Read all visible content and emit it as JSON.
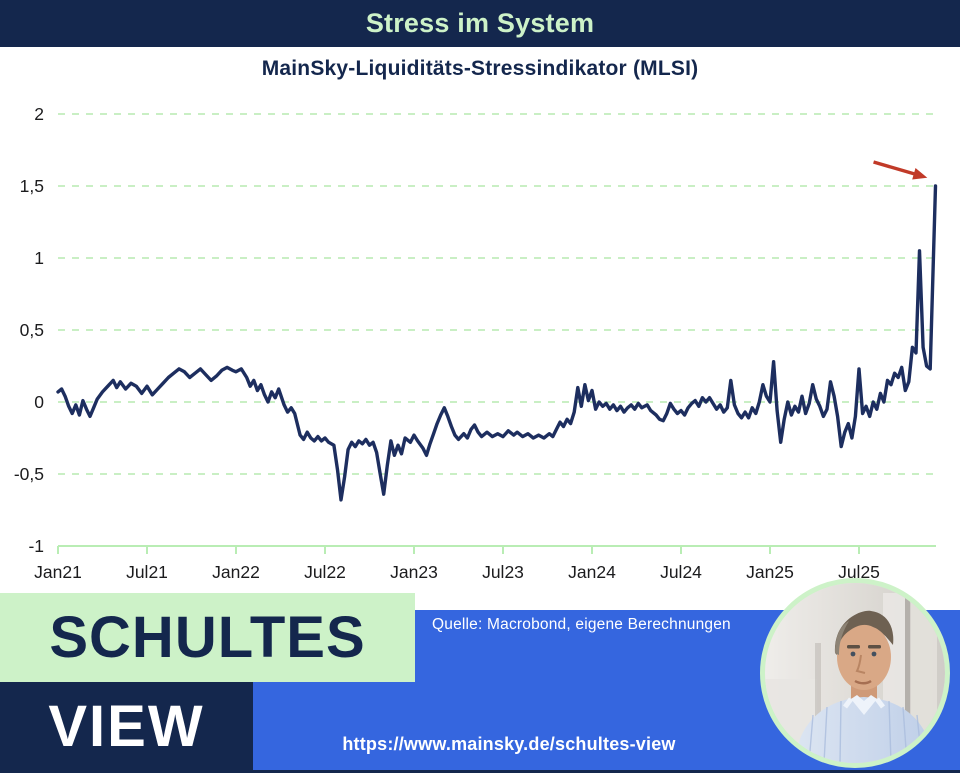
{
  "header": {
    "title": "Stress im System"
  },
  "chart": {
    "subtitle": "MainSky-Liquiditäts-Stressindikator (MLSI)"
  },
  "colors": {
    "navy": "#14274d",
    "line_navy": "#1d2e5f",
    "light_green": "#cdf2c8",
    "grid_green": "#c9efc4",
    "axis_green": "#b9edb4",
    "brand_blue": "#3566df",
    "arrow_red": "#c13a28",
    "tick_text": "#1c1c1e"
  },
  "branding": {
    "block_top_label": "SCHULTES",
    "block_bottom_label": "VIEW",
    "source_label": "Quelle: Macrobond, eigene Berechnungen",
    "url_label": "https://www.mainsky.de/schultes-view",
    "portrait": "photo of a man in light blue shirt, circular crop with light green ring"
  },
  "chart_data": {
    "type": "line",
    "title": "Stress im System",
    "subtitle": "MainSky-Liquiditäts-Stressindikator (MLSI)",
    "grid": "horizontal dashed light-green lines",
    "legend": "none",
    "x_axis": {
      "tick_labels": [
        "Jan21",
        "Jul21",
        "Jan22",
        "Jul22",
        "Jan23",
        "Jul23",
        "Jan24",
        "Jul24",
        "Jan25",
        "Jul25"
      ],
      "tick_years": [
        2021.0,
        2021.5,
        2022.0,
        2022.5,
        2023.0,
        2023.5,
        2024.0,
        2024.5,
        2025.0,
        2025.5
      ],
      "range_years": [
        2021.0,
        2025.93
      ]
    },
    "y_axis": {
      "tick_labels": [
        "2",
        "1,5",
        "1",
        "0,5",
        "0",
        "-0,5",
        "-1"
      ],
      "tick_values": [
        2,
        1.5,
        1,
        0.5,
        0,
        -0.5,
        -1
      ],
      "range": [
        -1,
        2
      ]
    },
    "annotation": {
      "type": "arrow",
      "color": "#c13a28",
      "points_to": "final spike of the indicator at approx. 1,5"
    },
    "series": [
      {
        "name": "MainSky-Liquiditäts-Stressindikator (MLSI)",
        "color": "#1d2e5f",
        "points": [
          [
            2021.0,
            0.07
          ],
          [
            2021.02,
            0.09
          ],
          [
            2021.04,
            0.04
          ],
          [
            2021.06,
            -0.03
          ],
          [
            2021.08,
            -0.08
          ],
          [
            2021.1,
            -0.02
          ],
          [
            2021.12,
            -0.09
          ],
          [
            2021.14,
            0.01
          ],
          [
            2021.16,
            -0.05
          ],
          [
            2021.18,
            -0.1
          ],
          [
            2021.2,
            -0.04
          ],
          [
            2021.22,
            0.02
          ],
          [
            2021.25,
            0.07
          ],
          [
            2021.28,
            0.11
          ],
          [
            2021.31,
            0.15
          ],
          [
            2021.33,
            0.1
          ],
          [
            2021.35,
            0.14
          ],
          [
            2021.38,
            0.09
          ],
          [
            2021.41,
            0.13
          ],
          [
            2021.44,
            0.11
          ],
          [
            2021.47,
            0.06
          ],
          [
            2021.5,
            0.11
          ],
          [
            2021.53,
            0.05
          ],
          [
            2021.56,
            0.09
          ],
          [
            2021.59,
            0.13
          ],
          [
            2021.62,
            0.17
          ],
          [
            2021.65,
            0.2
          ],
          [
            2021.68,
            0.23
          ],
          [
            2021.71,
            0.21
          ],
          [
            2021.74,
            0.17
          ],
          [
            2021.77,
            0.2
          ],
          [
            2021.8,
            0.23
          ],
          [
            2021.83,
            0.19
          ],
          [
            2021.86,
            0.15
          ],
          [
            2021.89,
            0.18
          ],
          [
            2021.92,
            0.22
          ],
          [
            2021.95,
            0.24
          ],
          [
            2021.98,
            0.22
          ],
          [
            2022.0,
            0.21
          ],
          [
            2022.03,
            0.23
          ],
          [
            2022.06,
            0.17
          ],
          [
            2022.08,
            0.11
          ],
          [
            2022.1,
            0.15
          ],
          [
            2022.12,
            0.08
          ],
          [
            2022.14,
            0.12
          ],
          [
            2022.16,
            0.05
          ],
          [
            2022.18,
            0.0
          ],
          [
            2022.2,
            0.07
          ],
          [
            2022.22,
            0.03
          ],
          [
            2022.24,
            0.09
          ],
          [
            2022.27,
            -0.02
          ],
          [
            2022.29,
            -0.07
          ],
          [
            2022.31,
            -0.04
          ],
          [
            2022.33,
            -0.08
          ],
          [
            2022.36,
            -0.23
          ],
          [
            2022.38,
            -0.26
          ],
          [
            2022.4,
            -0.21
          ],
          [
            2022.42,
            -0.25
          ],
          [
            2022.44,
            -0.27
          ],
          [
            2022.46,
            -0.24
          ],
          [
            2022.48,
            -0.27
          ],
          [
            2022.5,
            -0.25
          ],
          [
            2022.52,
            -0.28
          ],
          [
            2022.55,
            -0.3
          ],
          [
            2022.57,
            -0.47
          ],
          [
            2022.59,
            -0.68
          ],
          [
            2022.61,
            -0.52
          ],
          [
            2022.63,
            -0.33
          ],
          [
            2022.65,
            -0.28
          ],
          [
            2022.67,
            -0.31
          ],
          [
            2022.69,
            -0.27
          ],
          [
            2022.71,
            -0.29
          ],
          [
            2022.73,
            -0.26
          ],
          [
            2022.75,
            -0.3
          ],
          [
            2022.77,
            -0.28
          ],
          [
            2022.79,
            -0.35
          ],
          [
            2022.81,
            -0.5
          ],
          [
            2022.83,
            -0.64
          ],
          [
            2022.85,
            -0.44
          ],
          [
            2022.87,
            -0.27
          ],
          [
            2022.89,
            -0.37
          ],
          [
            2022.91,
            -0.3
          ],
          [
            2022.93,
            -0.36
          ],
          [
            2022.95,
            -0.25
          ],
          [
            2022.98,
            -0.28
          ],
          [
            2023.0,
            -0.23
          ],
          [
            2023.02,
            -0.27
          ],
          [
            2023.05,
            -0.32
          ],
          [
            2023.07,
            -0.37
          ],
          [
            2023.09,
            -0.29
          ],
          [
            2023.11,
            -0.22
          ],
          [
            2023.13,
            -0.15
          ],
          [
            2023.15,
            -0.09
          ],
          [
            2023.17,
            -0.04
          ],
          [
            2023.19,
            -0.1
          ],
          [
            2023.21,
            -0.17
          ],
          [
            2023.23,
            -0.23
          ],
          [
            2023.25,
            -0.26
          ],
          [
            2023.28,
            -0.22
          ],
          [
            2023.3,
            -0.25
          ],
          [
            2023.32,
            -0.19
          ],
          [
            2023.34,
            -0.16
          ],
          [
            2023.36,
            -0.21
          ],
          [
            2023.38,
            -0.24
          ],
          [
            2023.41,
            -0.21
          ],
          [
            2023.44,
            -0.24
          ],
          [
            2023.47,
            -0.22
          ],
          [
            2023.5,
            -0.24
          ],
          [
            2023.53,
            -0.2
          ],
          [
            2023.56,
            -0.23
          ],
          [
            2023.58,
            -0.21
          ],
          [
            2023.61,
            -0.24
          ],
          [
            2023.64,
            -0.22
          ],
          [
            2023.67,
            -0.25
          ],
          [
            2023.7,
            -0.23
          ],
          [
            2023.73,
            -0.25
          ],
          [
            2023.76,
            -0.22
          ],
          [
            2023.78,
            -0.24
          ],
          [
            2023.8,
            -0.19
          ],
          [
            2023.82,
            -0.14
          ],
          [
            2023.84,
            -0.17
          ],
          [
            2023.86,
            -0.12
          ],
          [
            2023.88,
            -0.15
          ],
          [
            2023.9,
            -0.07
          ],
          [
            2023.92,
            0.1
          ],
          [
            2023.94,
            -0.03
          ],
          [
            2023.96,
            0.12
          ],
          [
            2023.98,
            0.01
          ],
          [
            2024.0,
            0.08
          ],
          [
            2024.02,
            -0.05
          ],
          [
            2024.04,
            0.0
          ],
          [
            2024.06,
            -0.03
          ],
          [
            2024.08,
            -0.01
          ],
          [
            2024.1,
            -0.05
          ],
          [
            2024.12,
            -0.02
          ],
          [
            2024.14,
            -0.06
          ],
          [
            2024.16,
            -0.03
          ],
          [
            2024.18,
            -0.07
          ],
          [
            2024.2,
            -0.04
          ],
          [
            2024.22,
            -0.02
          ],
          [
            2024.24,
            -0.05
          ],
          [
            2024.26,
            -0.01
          ],
          [
            2024.28,
            -0.04
          ],
          [
            2024.31,
            -0.02
          ],
          [
            2024.33,
            -0.06
          ],
          [
            2024.36,
            -0.09
          ],
          [
            2024.38,
            -0.12
          ],
          [
            2024.4,
            -0.13
          ],
          [
            2024.42,
            -0.08
          ],
          [
            2024.44,
            -0.01
          ],
          [
            2024.46,
            -0.05
          ],
          [
            2024.48,
            -0.08
          ],
          [
            2024.5,
            -0.06
          ],
          [
            2024.52,
            -0.09
          ],
          [
            2024.54,
            -0.04
          ],
          [
            2024.56,
            -0.01
          ],
          [
            2024.58,
            0.01
          ],
          [
            2024.6,
            -0.03
          ],
          [
            2024.62,
            0.03
          ],
          [
            2024.64,
            0.0
          ],
          [
            2024.66,
            0.03
          ],
          [
            2024.68,
            -0.01
          ],
          [
            2024.7,
            -0.05
          ],
          [
            2024.72,
            -0.02
          ],
          [
            2024.74,
            -0.07
          ],
          [
            2024.76,
            -0.04
          ],
          [
            2024.78,
            0.15
          ],
          [
            2024.8,
            -0.02
          ],
          [
            2024.82,
            -0.08
          ],
          [
            2024.84,
            -0.11
          ],
          [
            2024.86,
            -0.07
          ],
          [
            2024.88,
            -0.11
          ],
          [
            2024.9,
            -0.04
          ],
          [
            2024.92,
            -0.08
          ],
          [
            2024.94,
            0.0
          ],
          [
            2024.96,
            0.12
          ],
          [
            2024.98,
            0.04
          ],
          [
            2025.0,
            0.0
          ],
          [
            2025.02,
            0.28
          ],
          [
            2025.04,
            -0.06
          ],
          [
            2025.06,
            -0.28
          ],
          [
            2025.08,
            -0.12
          ],
          [
            2025.1,
            0.0
          ],
          [
            2025.12,
            -0.09
          ],
          [
            2025.14,
            -0.03
          ],
          [
            2025.16,
            -0.07
          ],
          [
            2025.18,
            0.04
          ],
          [
            2025.2,
            -0.08
          ],
          [
            2025.22,
            -0.01
          ],
          [
            2025.24,
            0.12
          ],
          [
            2025.26,
            0.02
          ],
          [
            2025.28,
            -0.03
          ],
          [
            2025.3,
            -0.1
          ],
          [
            2025.32,
            -0.05
          ],
          [
            2025.34,
            0.14
          ],
          [
            2025.36,
            0.04
          ],
          [
            2025.38,
            -0.1
          ],
          [
            2025.4,
            -0.31
          ],
          [
            2025.42,
            -0.21
          ],
          [
            2025.44,
            -0.15
          ],
          [
            2025.46,
            -0.25
          ],
          [
            2025.48,
            -0.1
          ],
          [
            2025.5,
            0.23
          ],
          [
            2025.52,
            -0.08
          ],
          [
            2025.54,
            -0.03
          ],
          [
            2025.56,
            -0.1
          ],
          [
            2025.58,
            0.0
          ],
          [
            2025.6,
            -0.05
          ],
          [
            2025.62,
            0.06
          ],
          [
            2025.64,
            0.0
          ],
          [
            2025.66,
            0.15
          ],
          [
            2025.68,
            0.12
          ],
          [
            2025.7,
            0.2
          ],
          [
            2025.72,
            0.17
          ],
          [
            2025.74,
            0.24
          ],
          [
            2025.76,
            0.08
          ],
          [
            2025.78,
            0.14
          ],
          [
            2025.8,
            0.38
          ],
          [
            2025.82,
            0.34
          ],
          [
            2025.84,
            1.05
          ],
          [
            2025.86,
            0.38
          ],
          [
            2025.88,
            0.25
          ],
          [
            2025.9,
            0.23
          ],
          [
            2025.93,
            1.5
          ]
        ]
      }
    ]
  }
}
